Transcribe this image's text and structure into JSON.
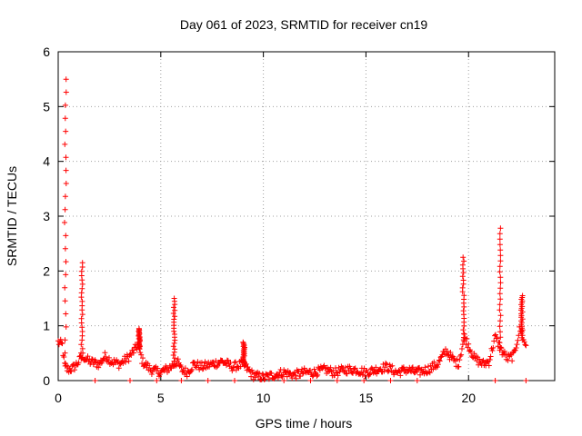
{
  "chart_data": {
    "type": "scatter",
    "title": "Day 061 of 2023, SRMTID for receiver cn19",
    "xlabel": "GPS time / hours",
    "ylabel": "SRMTID / TECUs",
    "xlim": [
      0,
      24.2
    ],
    "ylim": [
      0,
      6
    ],
    "x_ticks": [
      0,
      5,
      10,
      15,
      20
    ],
    "y_ticks": [
      0,
      1,
      2,
      3,
      4,
      5,
      6
    ],
    "x_tick_labels": [
      "0",
      "5",
      "10",
      "15",
      "20"
    ],
    "y_tick_labels": [
      "0",
      "1",
      "2",
      "3",
      "4",
      "5",
      "6"
    ],
    "grid": true,
    "marker": "+",
    "color": "#ff0000",
    "baseline": [
      [
        0.0,
        0.7
      ],
      [
        0.2,
        0.65
      ],
      [
        0.3,
        0.3
      ],
      [
        0.45,
        0.2
      ],
      [
        0.7,
        0.22
      ],
      [
        0.9,
        0.3
      ],
      [
        1.2,
        0.45
      ],
      [
        1.5,
        0.35
      ],
      [
        2.0,
        0.3
      ],
      [
        2.3,
        0.45
      ],
      [
        2.6,
        0.35
      ],
      [
        3.0,
        0.3
      ],
      [
        3.5,
        0.45
      ],
      [
        3.9,
        0.65
      ],
      [
        4.1,
        0.35
      ],
      [
        4.5,
        0.2
      ],
      [
        5.0,
        0.15
      ],
      [
        5.5,
        0.25
      ],
      [
        5.8,
        0.35
      ],
      [
        6.0,
        0.2
      ],
      [
        6.3,
        0.15
      ],
      [
        6.6,
        0.3
      ],
      [
        7.0,
        0.25
      ],
      [
        7.5,
        0.3
      ],
      [
        8.0,
        0.35
      ],
      [
        8.5,
        0.25
      ],
      [
        9.0,
        0.3
      ],
      [
        9.5,
        0.1
      ],
      [
        10.0,
        0.05
      ],
      [
        10.5,
        0.1
      ],
      [
        11.0,
        0.15
      ],
      [
        11.5,
        0.1
      ],
      [
        12.0,
        0.15
      ],
      [
        12.5,
        0.15
      ],
      [
        13.0,
        0.2
      ],
      [
        13.5,
        0.15
      ],
      [
        14.0,
        0.2
      ],
      [
        14.5,
        0.2
      ],
      [
        15.0,
        0.15
      ],
      [
        15.5,
        0.2
      ],
      [
        16.0,
        0.25
      ],
      [
        16.5,
        0.15
      ],
      [
        17.0,
        0.2
      ],
      [
        17.5,
        0.15
      ],
      [
        18.0,
        0.2
      ],
      [
        18.5,
        0.3
      ],
      [
        18.9,
        0.55
      ],
      [
        19.2,
        0.4
      ],
      [
        19.5,
        0.3
      ],
      [
        19.8,
        0.8
      ],
      [
        20.0,
        0.65
      ],
      [
        20.3,
        0.4
      ],
      [
        20.7,
        0.3
      ],
      [
        21.0,
        0.35
      ],
      [
        21.3,
        0.8
      ],
      [
        21.6,
        0.55
      ],
      [
        21.9,
        0.4
      ],
      [
        22.2,
        0.45
      ],
      [
        22.5,
        0.95
      ],
      [
        22.7,
        0.7
      ],
      [
        22.8,
        0.65
      ]
    ],
    "spikes": [
      {
        "x": 0.35,
        "peak": 5.5
      },
      {
        "x": 1.15,
        "peak": 2.15
      },
      {
        "x": 3.95,
        "peak": 0.95
      },
      {
        "x": 5.65,
        "peak": 1.5
      },
      {
        "x": 9.05,
        "peak": 0.7
      },
      {
        "x": 19.75,
        "peak": 2.25
      },
      {
        "x": 21.55,
        "peak": 2.78
      },
      {
        "x": 22.6,
        "peak": 1.55
      }
    ],
    "zero_points": [
      1.8,
      3.5,
      4.8,
      6.0,
      7.3,
      8.6,
      11.0,
      12.3,
      13.6,
      14.9,
      16.2,
      17.5,
      21.3,
      22.8
    ]
  }
}
